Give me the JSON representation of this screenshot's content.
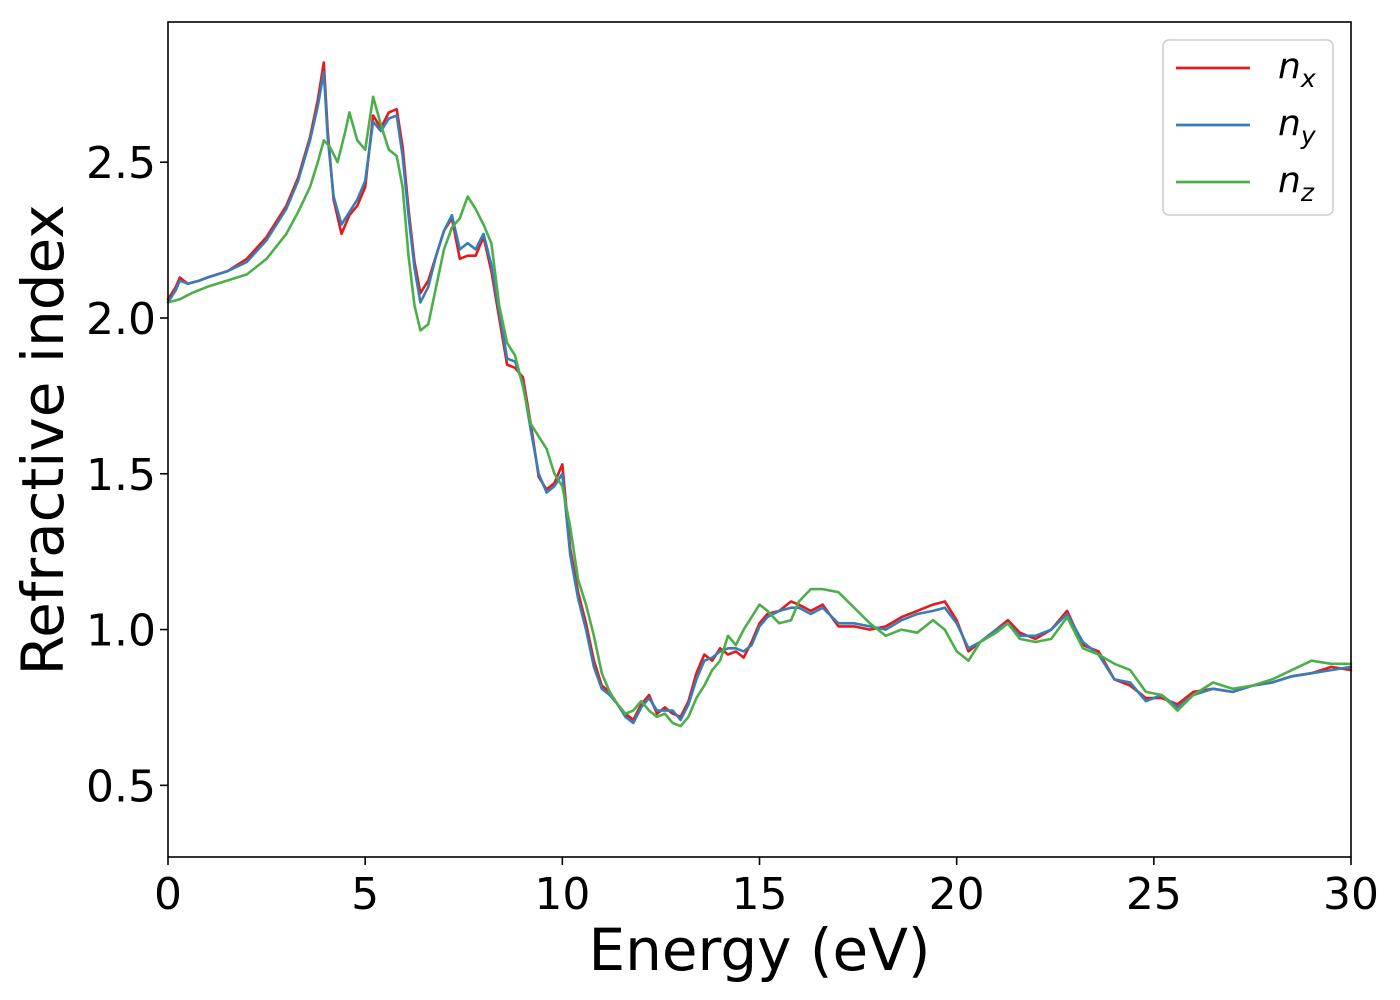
{
  "chart_data": {
    "type": "line",
    "title": "",
    "xlabel": "Energy (eV)",
    "ylabel": "Refractive index",
    "xlim": [
      0,
      30
    ],
    "ylim": [
      0.27,
      2.95
    ],
    "xticks": [
      0,
      5,
      10,
      15,
      20,
      25,
      30
    ],
    "xtick_labels": [
      "0",
      "5",
      "10",
      "15",
      "20",
      "25",
      "30"
    ],
    "yticks": [
      0.5,
      1.0,
      1.5,
      2.0,
      2.5
    ],
    "ytick_labels": [
      "0.5",
      "1.0",
      "1.5",
      "2.0",
      "2.5"
    ],
    "grid": false,
    "legend_position": "top-right",
    "colors": {
      "nx": "#e41a1c",
      "ny": "#377eb8",
      "nz": "#4daf4a"
    },
    "series": [
      {
        "name": "n",
        "subscript": "x",
        "key": "nx",
        "x": [
          0,
          0.2,
          0.3,
          0.5,
          0.8,
          1.0,
          1.5,
          2.0,
          2.5,
          3.0,
          3.3,
          3.6,
          3.8,
          3.95,
          4.05,
          4.2,
          4.4,
          4.6,
          4.8,
          5.0,
          5.2,
          5.4,
          5.6,
          5.8,
          5.95,
          6.1,
          6.25,
          6.4,
          6.6,
          6.8,
          7.0,
          7.2,
          7.4,
          7.6,
          7.8,
          8.0,
          8.2,
          8.4,
          8.6,
          8.8,
          9.0,
          9.2,
          9.4,
          9.6,
          9.8,
          10.0,
          10.2,
          10.4,
          10.6,
          10.8,
          11.0,
          11.2,
          11.4,
          11.6,
          11.8,
          12.0,
          12.2,
          12.4,
          12.6,
          12.8,
          13.0,
          13.2,
          13.4,
          13.6,
          13.8,
          14.0,
          14.2,
          14.4,
          14.6,
          14.8,
          15.0,
          15.2,
          15.5,
          15.8,
          16.0,
          16.3,
          16.6,
          17.0,
          17.4,
          17.8,
          18.2,
          18.6,
          19.0,
          19.4,
          19.7,
          20.0,
          20.3,
          20.6,
          21.0,
          21.3,
          21.6,
          22.0,
          22.4,
          22.8,
          23.2,
          23.6,
          24.0,
          24.4,
          24.8,
          25.2,
          25.6,
          26.0,
          26.5,
          27.0,
          27.5,
          28.0,
          28.5,
          29.0,
          29.5,
          30.0
        ],
        "y": [
          2.06,
          2.1,
          2.13,
          2.11,
          2.12,
          2.13,
          2.15,
          2.19,
          2.26,
          2.36,
          2.45,
          2.58,
          2.7,
          2.82,
          2.6,
          2.38,
          2.27,
          2.33,
          2.36,
          2.42,
          2.65,
          2.61,
          2.66,
          2.67,
          2.55,
          2.35,
          2.18,
          2.08,
          2.12,
          2.2,
          2.28,
          2.32,
          2.19,
          2.2,
          2.2,
          2.26,
          2.15,
          2.0,
          1.85,
          1.84,
          1.81,
          1.66,
          1.49,
          1.45,
          1.47,
          1.53,
          1.26,
          1.12,
          1.02,
          0.9,
          0.82,
          0.8,
          0.76,
          0.73,
          0.71,
          0.76,
          0.79,
          0.73,
          0.75,
          0.73,
          0.72,
          0.77,
          0.86,
          0.92,
          0.9,
          0.94,
          0.92,
          0.93,
          0.91,
          0.96,
          1.02,
          1.05,
          1.06,
          1.09,
          1.08,
          1.06,
          1.08,
          1.01,
          1.01,
          1.0,
          1.01,
          1.04,
          1.06,
          1.08,
          1.09,
          1.03,
          0.93,
          0.96,
          1.0,
          1.03,
          0.99,
          0.97,
          1.0,
          1.06,
          0.95,
          0.93,
          0.84,
          0.82,
          0.78,
          0.78,
          0.76,
          0.8,
          0.81,
          0.8,
          0.82,
          0.83,
          0.85,
          0.86,
          0.88,
          0.87
        ]
      },
      {
        "name": "n",
        "subscript": "y",
        "key": "ny",
        "x": [
          0,
          0.2,
          0.3,
          0.5,
          0.8,
          1.0,
          1.5,
          2.0,
          2.5,
          3.0,
          3.3,
          3.6,
          3.8,
          3.95,
          4.05,
          4.2,
          4.4,
          4.6,
          4.8,
          5.0,
          5.2,
          5.4,
          5.6,
          5.8,
          5.95,
          6.1,
          6.25,
          6.4,
          6.6,
          6.8,
          7.0,
          7.2,
          7.4,
          7.6,
          7.8,
          8.0,
          8.2,
          8.4,
          8.6,
          8.8,
          9.0,
          9.2,
          9.4,
          9.6,
          9.8,
          10.0,
          10.2,
          10.4,
          10.6,
          10.8,
          11.0,
          11.2,
          11.4,
          11.6,
          11.8,
          12.0,
          12.2,
          12.4,
          12.6,
          12.8,
          13.0,
          13.2,
          13.4,
          13.6,
          13.8,
          14.0,
          14.2,
          14.4,
          14.6,
          14.8,
          15.0,
          15.2,
          15.5,
          15.8,
          16.0,
          16.3,
          16.6,
          17.0,
          17.4,
          17.8,
          18.2,
          18.6,
          19.0,
          19.4,
          19.7,
          20.0,
          20.3,
          20.6,
          21.0,
          21.3,
          21.6,
          22.0,
          22.4,
          22.8,
          23.2,
          23.6,
          24.0,
          24.4,
          24.8,
          25.2,
          25.6,
          26.0,
          26.5,
          27.0,
          27.5,
          28.0,
          28.5,
          29.0,
          29.5,
          30.0
        ],
        "y": [
          2.05,
          2.09,
          2.12,
          2.11,
          2.12,
          2.13,
          2.15,
          2.18,
          2.25,
          2.35,
          2.44,
          2.57,
          2.68,
          2.79,
          2.58,
          2.39,
          2.3,
          2.34,
          2.38,
          2.44,
          2.63,
          2.6,
          2.64,
          2.65,
          2.52,
          2.33,
          2.16,
          2.05,
          2.1,
          2.2,
          2.28,
          2.33,
          2.22,
          2.24,
          2.22,
          2.27,
          2.17,
          2.02,
          1.87,
          1.86,
          1.79,
          1.64,
          1.5,
          1.44,
          1.46,
          1.5,
          1.24,
          1.1,
          1.0,
          0.88,
          0.81,
          0.79,
          0.76,
          0.72,
          0.7,
          0.75,
          0.78,
          0.74,
          0.74,
          0.74,
          0.71,
          0.76,
          0.84,
          0.9,
          0.91,
          0.93,
          0.94,
          0.94,
          0.93,
          0.95,
          1.01,
          1.04,
          1.06,
          1.07,
          1.07,
          1.05,
          1.07,
          1.02,
          1.02,
          1.01,
          1.0,
          1.03,
          1.05,
          1.06,
          1.07,
          1.02,
          0.94,
          0.96,
          1.0,
          1.02,
          0.98,
          0.98,
          1.0,
          1.05,
          0.96,
          0.92,
          0.84,
          0.83,
          0.77,
          0.79,
          0.75,
          0.79,
          0.81,
          0.8,
          0.82,
          0.83,
          0.85,
          0.86,
          0.87,
          0.88
        ]
      },
      {
        "name": "n",
        "subscript": "z",
        "key": "nz",
        "x": [
          0,
          0.3,
          0.6,
          1.0,
          1.5,
          2.0,
          2.5,
          3.0,
          3.3,
          3.6,
          3.8,
          3.95,
          4.1,
          4.3,
          4.5,
          4.6,
          4.8,
          5.0,
          5.2,
          5.4,
          5.6,
          5.8,
          5.95,
          6.1,
          6.25,
          6.4,
          6.6,
          6.8,
          7.0,
          7.2,
          7.4,
          7.6,
          7.8,
          8.0,
          8.2,
          8.4,
          8.6,
          8.8,
          9.0,
          9.2,
          9.4,
          9.6,
          9.8,
          10.0,
          10.2,
          10.4,
          10.6,
          10.8,
          11.0,
          11.2,
          11.4,
          11.6,
          11.8,
          12.0,
          12.2,
          12.4,
          12.6,
          12.8,
          13.0,
          13.2,
          13.4,
          13.6,
          13.8,
          14.0,
          14.2,
          14.4,
          14.6,
          14.8,
          15.0,
          15.2,
          15.5,
          15.8,
          16.0,
          16.3,
          16.6,
          17.0,
          17.4,
          17.8,
          18.2,
          18.6,
          19.0,
          19.4,
          19.7,
          20.0,
          20.3,
          20.6,
          21.0,
          21.3,
          21.6,
          22.0,
          22.4,
          22.8,
          23.2,
          23.6,
          24.0,
          24.4,
          24.8,
          25.2,
          25.6,
          26.0,
          26.5,
          27.0,
          27.5,
          28.0,
          28.5,
          29.0,
          29.5,
          30.0
        ],
        "y": [
          2.05,
          2.06,
          2.08,
          2.1,
          2.12,
          2.14,
          2.19,
          2.27,
          2.34,
          2.42,
          2.5,
          2.57,
          2.55,
          2.5,
          2.6,
          2.66,
          2.57,
          2.54,
          2.71,
          2.62,
          2.54,
          2.52,
          2.42,
          2.2,
          2.04,
          1.96,
          1.98,
          2.1,
          2.22,
          2.29,
          2.32,
          2.39,
          2.35,
          2.3,
          2.24,
          2.04,
          1.92,
          1.88,
          1.78,
          1.66,
          1.62,
          1.58,
          1.5,
          1.46,
          1.33,
          1.16,
          1.08,
          0.98,
          0.86,
          0.8,
          0.76,
          0.73,
          0.74,
          0.77,
          0.74,
          0.72,
          0.73,
          0.7,
          0.69,
          0.72,
          0.78,
          0.82,
          0.87,
          0.9,
          0.98,
          0.95,
          1.0,
          1.04,
          1.08,
          1.06,
          1.02,
          1.03,
          1.09,
          1.13,
          1.13,
          1.12,
          1.07,
          1.02,
          0.98,
          1.0,
          0.99,
          1.03,
          1.0,
          0.93,
          0.9,
          0.96,
          0.99,
          1.02,
          0.97,
          0.96,
          0.97,
          1.04,
          0.94,
          0.92,
          0.89,
          0.87,
          0.8,
          0.79,
          0.74,
          0.79,
          0.83,
          0.81,
          0.82,
          0.84,
          0.87,
          0.9,
          0.89,
          0.89
        ]
      }
    ]
  }
}
